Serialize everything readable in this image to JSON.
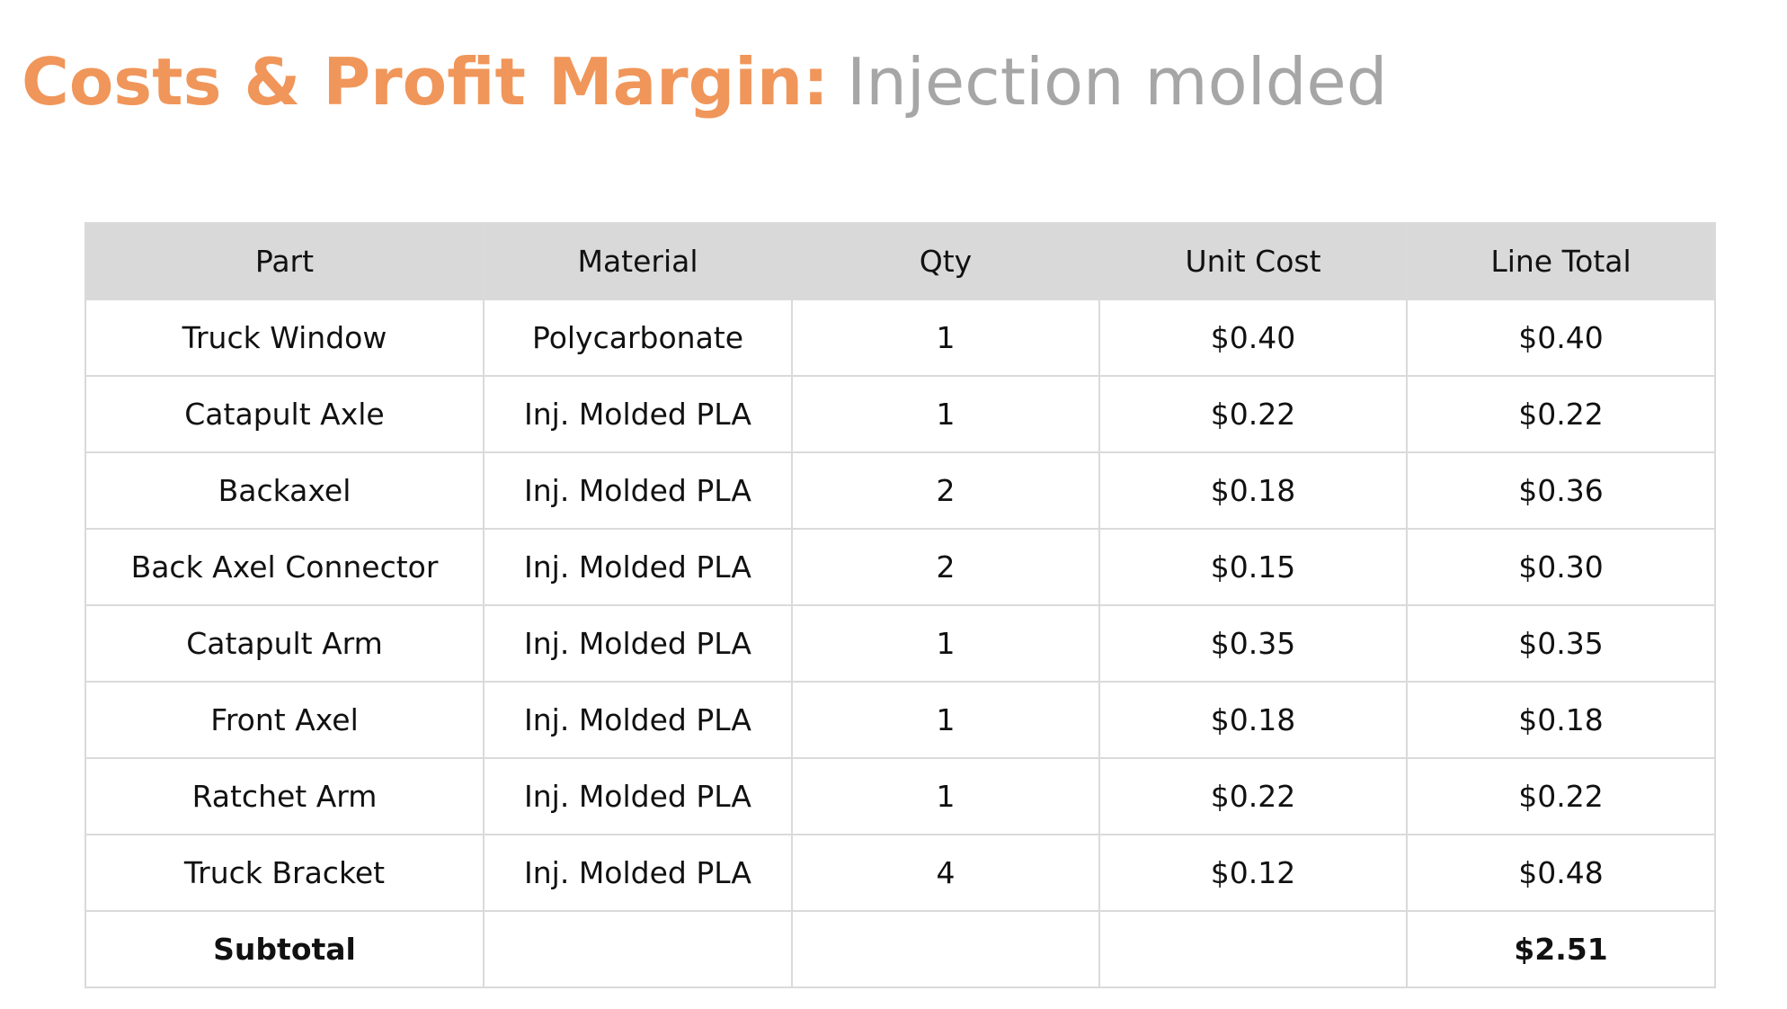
{
  "title": {
    "emphasis": "Costs & Profit Margin:",
    "rest": "Injection molded"
  },
  "table": {
    "header": [
      "Part",
      "Material",
      "Qty",
      "Unit Cost",
      "Line Total"
    ],
    "rows": [
      [
        "Truck Window",
        "Polycarbonate",
        1,
        "$0.40",
        "$0.40"
      ],
      [
        "Catapult Axle",
        "Inj. Molded PLA",
        1,
        "$0.22",
        "$0.22"
      ],
      [
        "Backaxel",
        "Inj. Molded PLA",
        2,
        "$0.18",
        "$0.36"
      ],
      [
        "Back Axel Connector",
        "Inj. Molded PLA",
        2,
        "$0.15",
        "$0.30"
      ],
      [
        "Catapult Arm",
        "Inj. Molded PLA",
        1,
        "$0.35",
        "$0.35"
      ],
      [
        "Front Axel",
        "Inj. Molded PLA",
        1,
        "$0.18",
        "$0.18"
      ],
      [
        "Ratchet Arm",
        "Inj. Molded PLA",
        1,
        "$0.22",
        "$0.22"
      ],
      [
        "Truck Bracket",
        "Inj. Molded PLA",
        4,
        "$0.12",
        "$0.48"
      ]
    ],
    "subtotal": {
      "label": "Subtotal",
      "line_total": "$2.51"
    }
  }
}
